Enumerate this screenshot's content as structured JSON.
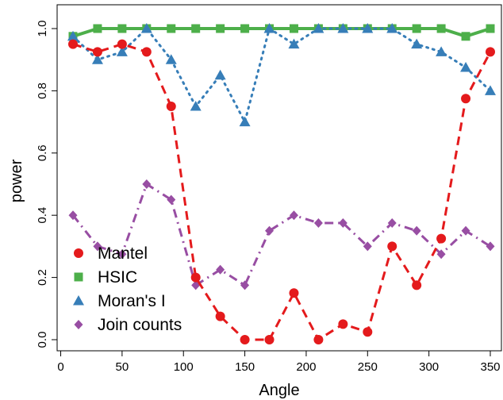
{
  "chart_data": {
    "type": "line",
    "title": "",
    "xlabel": "Angle",
    "ylabel": "power",
    "xlim": [
      0,
      360
    ],
    "ylim": [
      0,
      1.0
    ],
    "xticks": [
      0,
      50,
      100,
      150,
      200,
      250,
      300,
      350
    ],
    "yticks": [
      0.0,
      0.2,
      0.4,
      0.6,
      0.8,
      1.0
    ],
    "xtick_labels": [
      "0",
      "50",
      "100",
      "150",
      "200",
      "250",
      "300",
      "350"
    ],
    "ytick_labels": [
      "0.0",
      "0.2",
      "0.4",
      "0.6",
      "0.8",
      "1.0"
    ],
    "grid": false,
    "legend_position": "bottom-left",
    "x": [
      10,
      30,
      50,
      70,
      90,
      110,
      130,
      150,
      170,
      190,
      210,
      230,
      250,
      270,
      290,
      310,
      330,
      350
    ],
    "series": [
      {
        "name": "Mantel",
        "color": "#e41a1c",
        "line_style": "dashed",
        "marker": "circle",
        "values": [
          0.95,
          0.925,
          0.95,
          0.925,
          0.75,
          0.2,
          0.075,
          0.0,
          0.0,
          0.15,
          0.0,
          0.05,
          0.025,
          0.3,
          0.175,
          0.325,
          0.775,
          0.925
        ]
      },
      {
        "name": "HSIC",
        "color": "#4daf4a",
        "line_style": "solid",
        "marker": "square",
        "values": [
          0.975,
          1.0,
          1.0,
          1.0,
          1.0,
          1.0,
          1.0,
          1.0,
          1.0,
          1.0,
          1.0,
          1.0,
          1.0,
          1.0,
          1.0,
          1.0,
          0.975,
          1.0
        ]
      },
      {
        "name": "Moran's I",
        "color": "#377eb8",
        "line_style": "dotted",
        "marker": "triangle",
        "values": [
          0.975,
          0.9,
          0.925,
          1.0,
          0.9,
          0.75,
          0.85,
          0.7,
          1.0,
          0.95,
          1.0,
          1.0,
          1.0,
          1.0,
          0.95,
          0.925,
          0.875,
          0.8
        ]
      },
      {
        "name": "Join counts",
        "color": "#984ea3",
        "line_style": "dashdot",
        "marker": "diamond",
        "values": [
          0.4,
          0.3,
          0.275,
          0.5,
          0.45,
          0.175,
          0.225,
          0.175,
          0.35,
          0.4,
          0.375,
          0.375,
          0.3,
          0.375,
          0.35,
          0.275,
          0.35,
          0.3
        ]
      }
    ]
  }
}
